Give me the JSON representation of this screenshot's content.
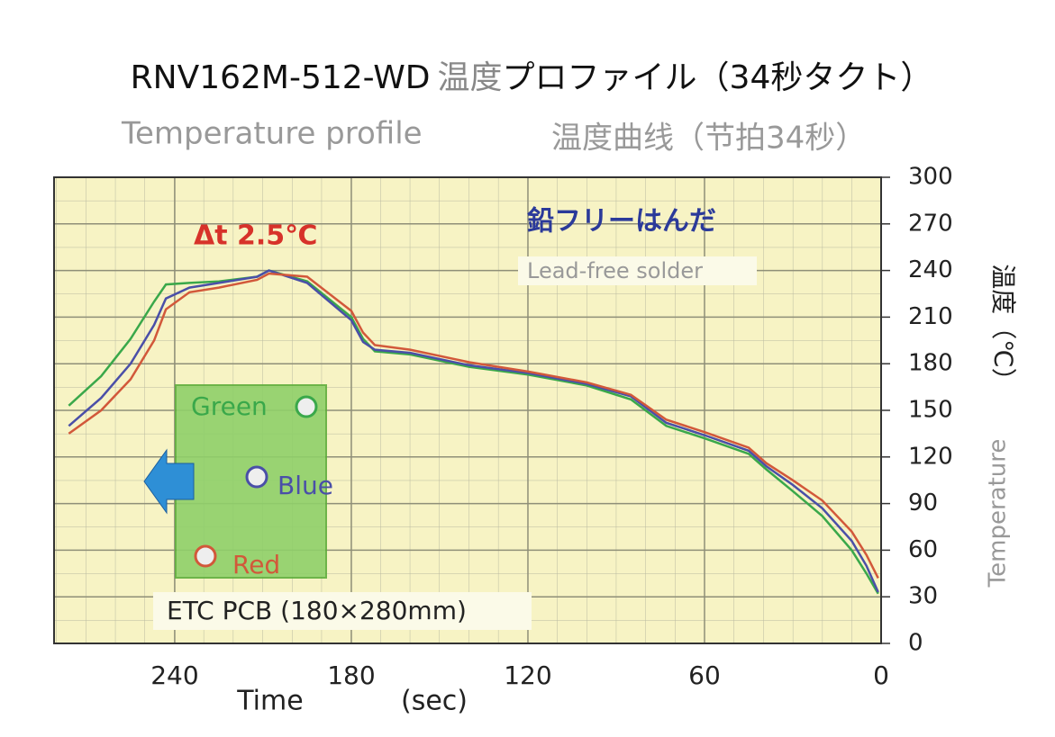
{
  "chart_data": {
    "type": "line",
    "title_model": "RNV162M-512-WD",
    "title_gray": "温度",
    "title_rest": "プロファイル（34秒タクト）",
    "subtitle_en": "Temperature profile",
    "subtitle_cn": "温度曲线（节拍34秒）",
    "annotation_dt": "Δt 2.5℃",
    "annotation_jp": "鉛フリーはんだ",
    "annotation_en": "Lead-free solder",
    "annotation_pcb": "ETC PCB (180×280mm)",
    "xlabel": "Time",
    "xunit": "(sec)",
    "ylabel_jp": "温度（℃）",
    "ylabel_en": "Temperature",
    "x": [
      276,
      265,
      255,
      247,
      243,
      235,
      225,
      212,
      208,
      195,
      180,
      176,
      172,
      160,
      140,
      120,
      100,
      85,
      73,
      60,
      45,
      39,
      30,
      20,
      10,
      5,
      1
    ],
    "series": [
      {
        "name": "Green",
        "color": "#3aa84a",
        "values": [
          153,
          172,
          196,
          220,
          231,
          232,
          233,
          236,
          240,
          233,
          210,
          196,
          188,
          186,
          178,
          173,
          166,
          157,
          140,
          132,
          122,
          112,
          98,
          82,
          60,
          45,
          32
        ]
      },
      {
        "name": "Blue",
        "color": "#4a4fa8",
        "values": [
          140,
          158,
          180,
          205,
          222,
          229,
          232,
          236,
          240,
          232,
          208,
          194,
          189,
          187,
          179,
          174,
          167,
          159,
          142,
          134,
          124,
          114,
          102,
          87,
          66,
          50,
          33
        ]
      },
      {
        "name": "Red",
        "color": "#d2583a",
        "values": [
          135,
          150,
          170,
          195,
          215,
          226,
          229,
          234,
          238,
          236,
          214,
          200,
          192,
          189,
          181,
          175,
          168,
          160,
          144,
          136,
          126,
          116,
          105,
          92,
          72,
          57,
          42
        ]
      }
    ],
    "xlim": [
      281,
      0
    ],
    "xticks": [
      240,
      180,
      120,
      60,
      0
    ],
    "ylim": [
      0,
      300
    ],
    "yticks": [
      0,
      30,
      60,
      90,
      120,
      150,
      180,
      210,
      240,
      270,
      300
    ],
    "grid": true
  }
}
